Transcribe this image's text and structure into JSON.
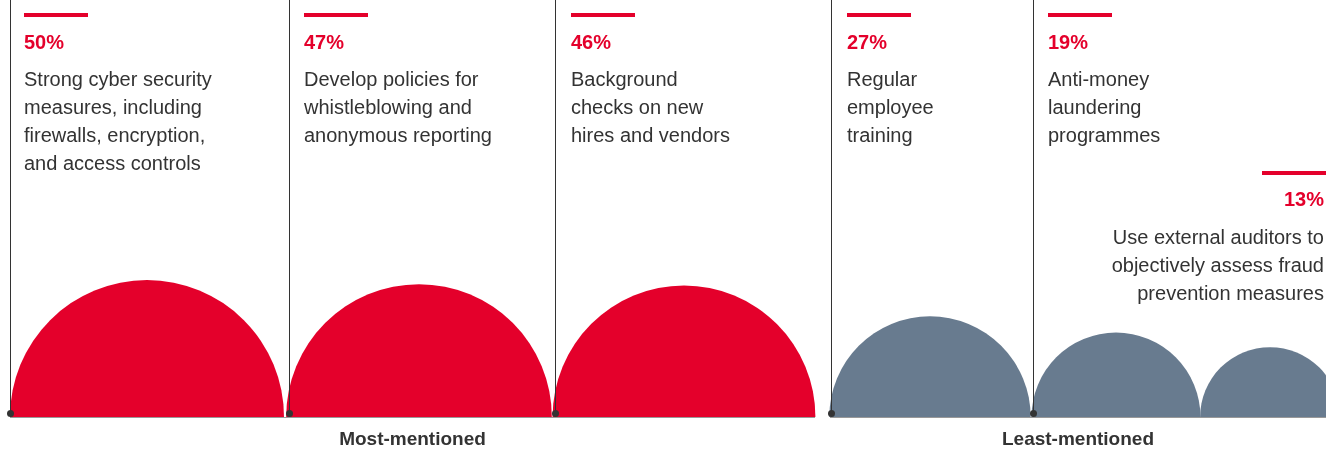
{
  "chart_data": {
    "type": "other",
    "categories": [
      "Strong cyber security measures, including firewalls, encryption, and access controls",
      "Develop policies for whistleblowing and anonymous reporting",
      "Background checks on new hires and vendors",
      "Regular employee training",
      "Anti-money laundering programmes",
      "Use external auditors to objectively assess fraud prevention measures"
    ],
    "values": [
      50,
      47,
      46,
      27,
      19,
      13
    ],
    "value_labels": [
      "50%",
      "47%",
      "46%",
      "27%",
      "19%",
      "13%"
    ],
    "colors": [
      "#e4002b",
      "#e4002b",
      "#e4002b",
      "#687b8f",
      "#687b8f",
      "#687b8f"
    ],
    "annotations": [
      "Most-mentioned",
      "Least-mentioned"
    ]
  }
}
